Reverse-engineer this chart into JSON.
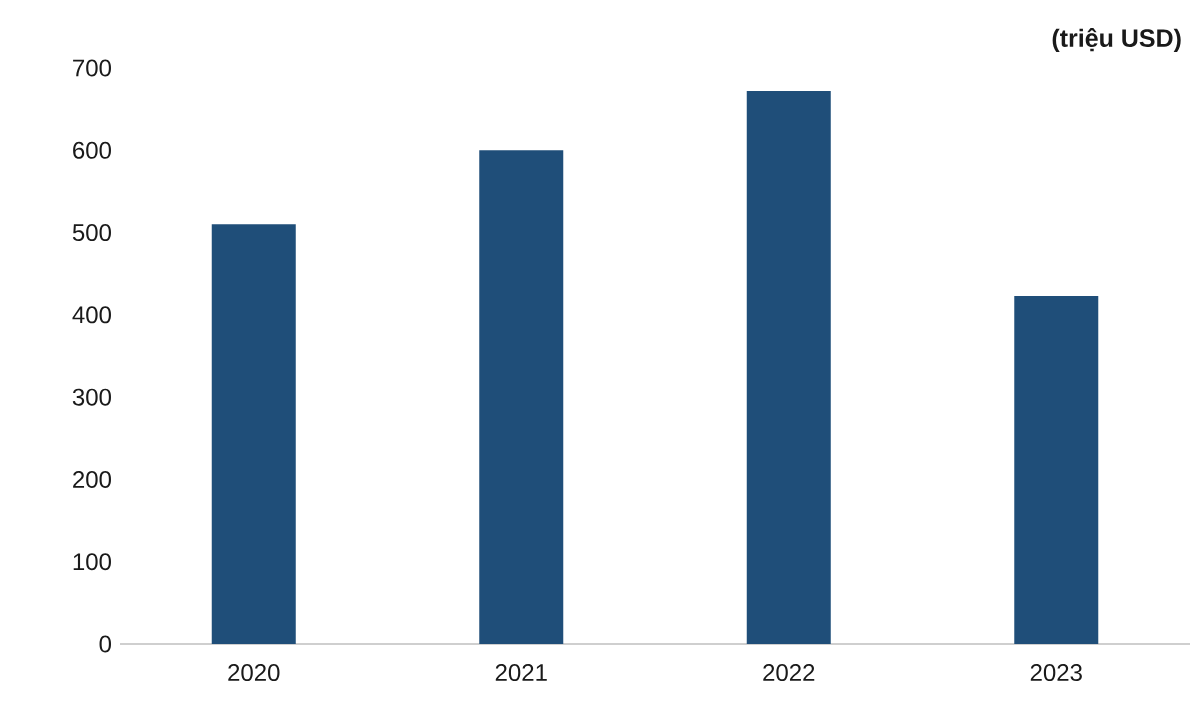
{
  "chart_data": {
    "type": "bar",
    "ylabel": "(triệu USD)",
    "categories": [
      "2020",
      "2021",
      "2022",
      "2023"
    ],
    "values": [
      510,
      600,
      672,
      423
    ],
    "color": "#1f4e79",
    "ylim": [
      0,
      700
    ],
    "yticks": [
      0,
      100,
      200,
      300,
      400,
      500,
      600,
      700
    ],
    "grid": false
  }
}
